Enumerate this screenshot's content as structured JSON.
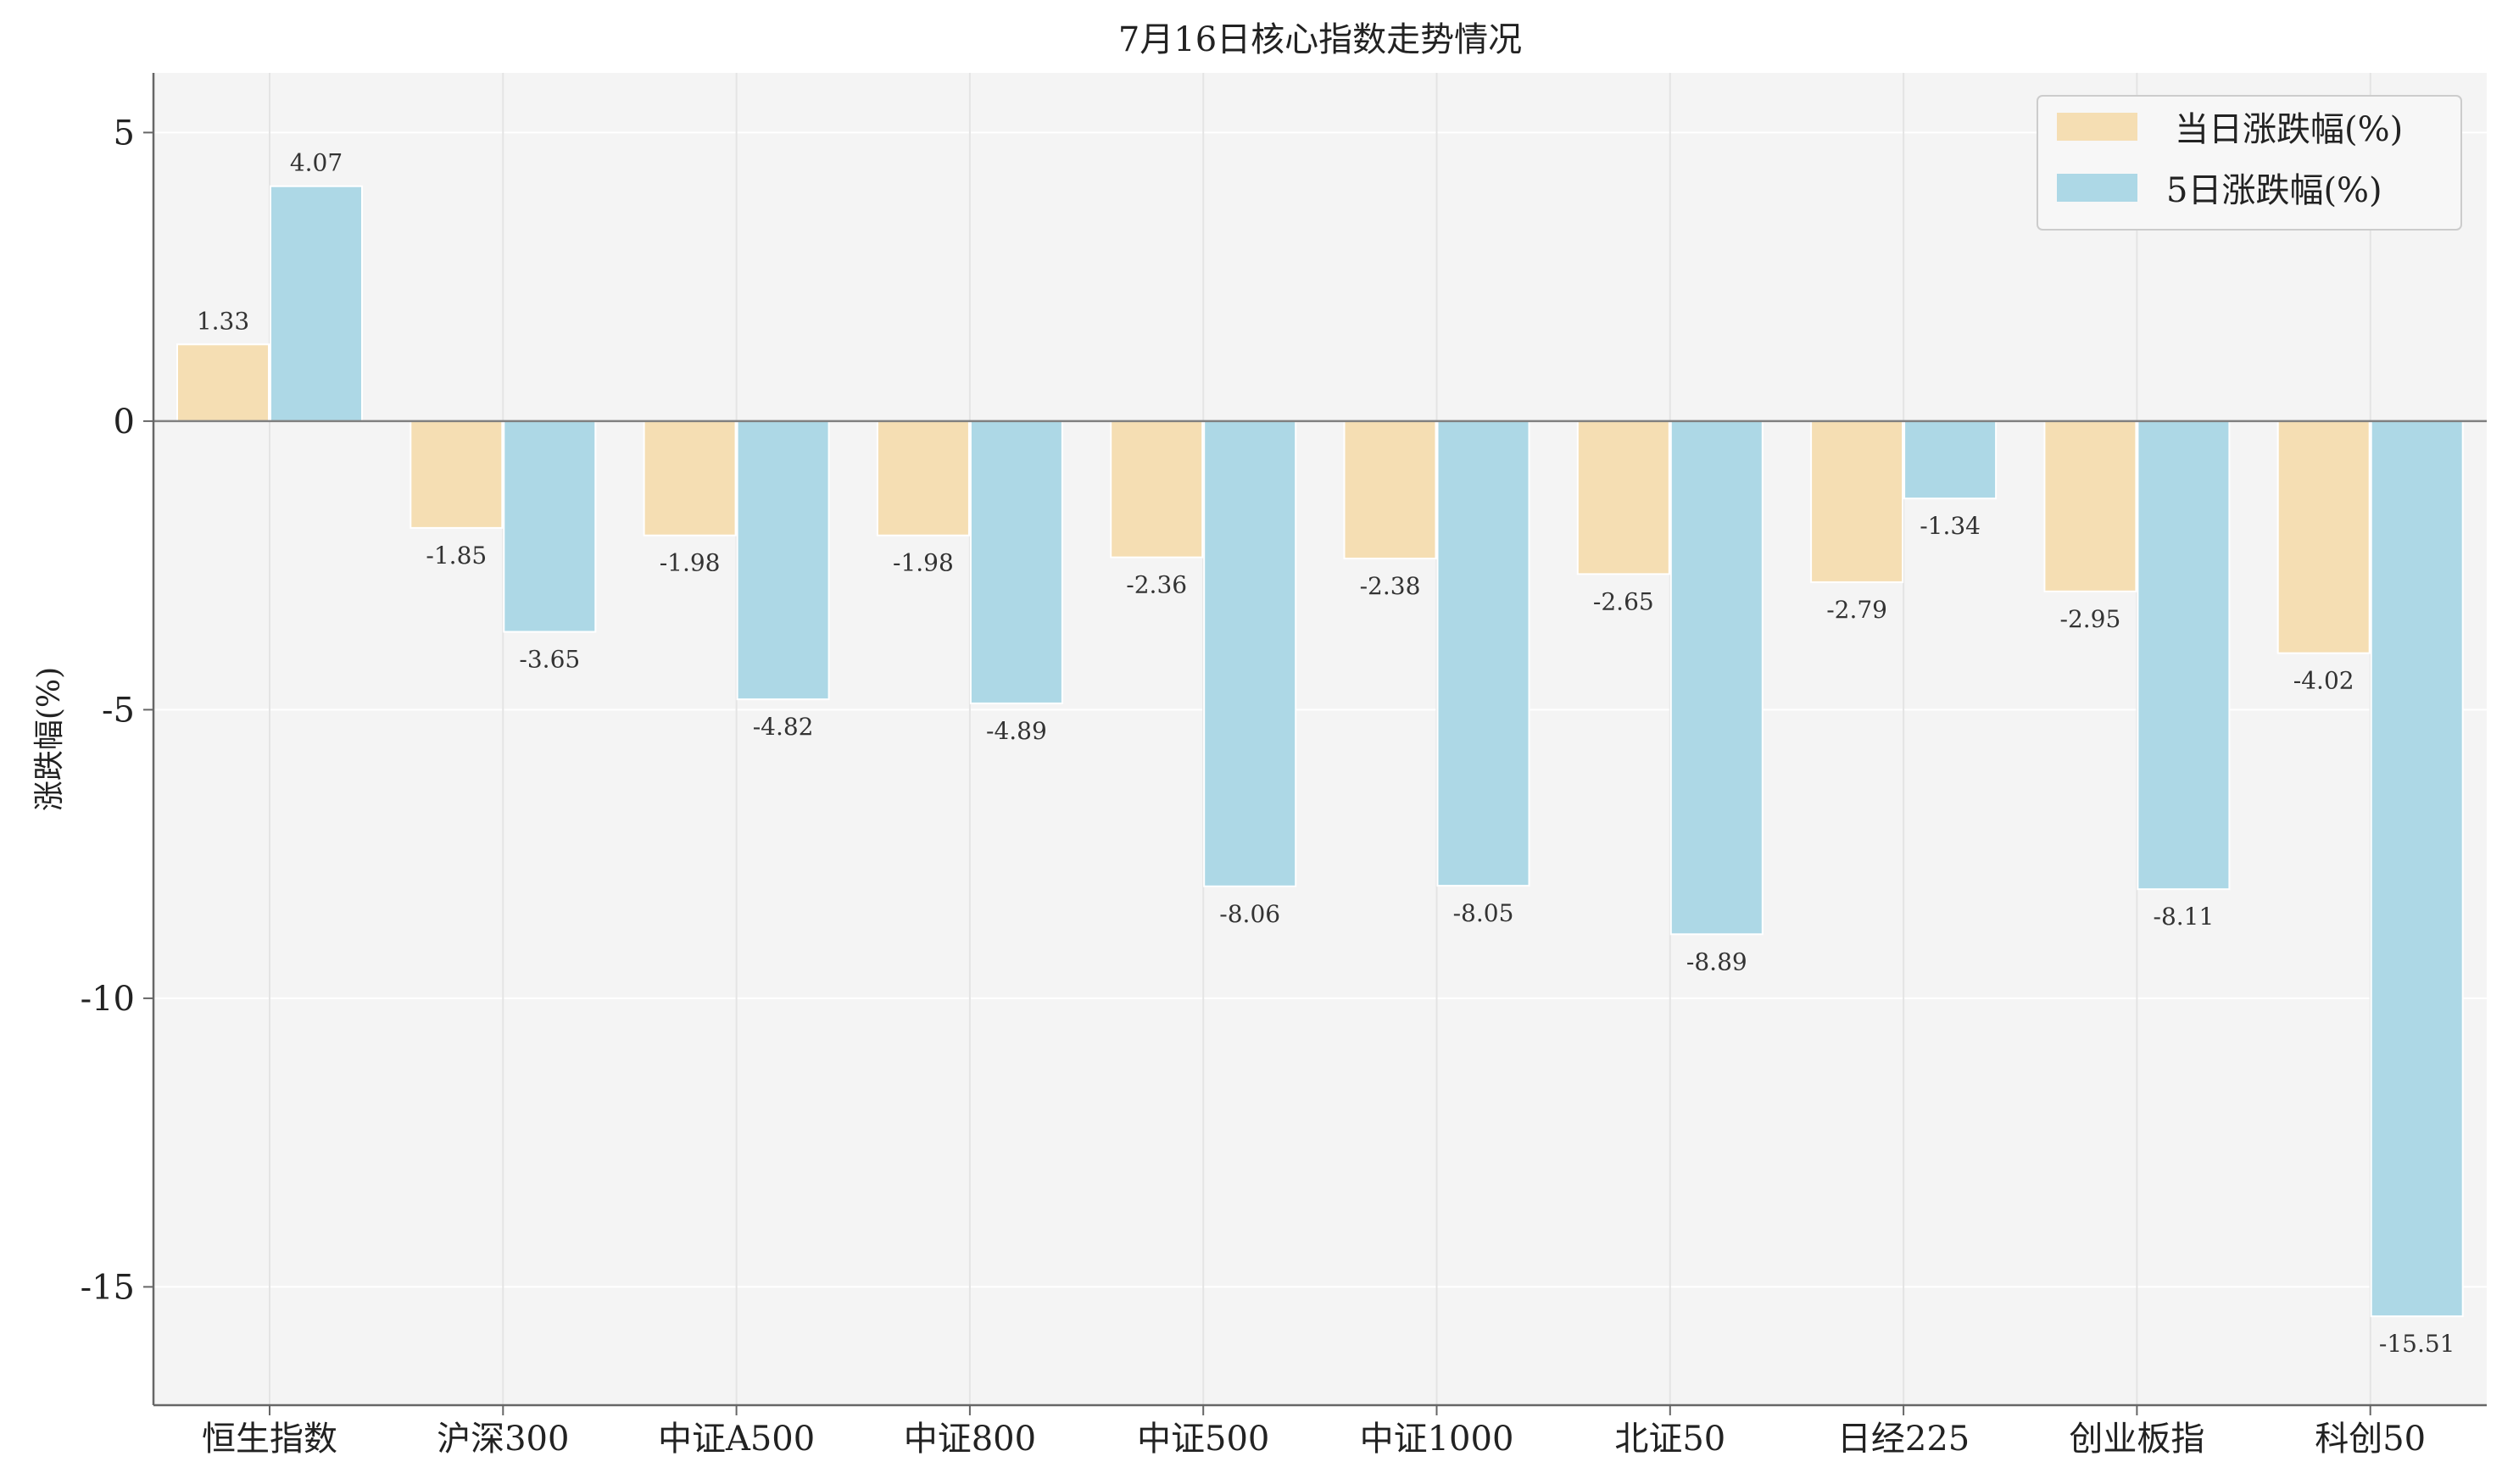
{
  "chart_data": {
    "type": "bar",
    "title": "7月16日核心指数走势情况",
    "xlabel": "",
    "ylabel": "涨跌幅(%)",
    "ylim": [
      -17,
      6
    ],
    "yticks": [
      5,
      0,
      -5,
      -10,
      -15
    ],
    "grid": true,
    "legend_position": "top-right",
    "categories": [
      "恒生指数",
      "沪深300",
      "中证A500",
      "中证800",
      "中证500",
      "中证1000",
      "北证50",
      "日经225",
      "创业板指",
      "科创50"
    ],
    "series": [
      {
        "name": "当日涨跌幅(%)",
        "color": "#F5DEB3",
        "values": [
          1.33,
          -1.85,
          -1.98,
          -1.98,
          -2.36,
          -2.38,
          -2.65,
          -2.79,
          -2.95,
          -4.02
        ]
      },
      {
        "name": "5日涨跌幅(%)",
        "color": "#ADD8E6",
        "values": [
          4.07,
          -3.65,
          -4.82,
          -4.89,
          -8.06,
          -8.05,
          -8.89,
          -1.34,
          -8.11,
          -15.51
        ]
      }
    ]
  }
}
